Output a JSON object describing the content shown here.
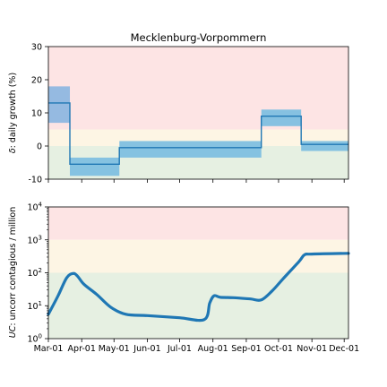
{
  "chart_data": [
    {
      "type": "line",
      "title": "Mecklenburg-Vorpommern",
      "ylabel_symbol": "δ",
      "ylabel_rest": ": daily growth (%)",
      "ylim": [
        -10,
        30
      ],
      "yticks": [
        -10,
        0,
        10,
        20,
        30
      ],
      "xlim": [
        "2020-03-01",
        "2020-12-05"
      ],
      "bands": [
        {
          "from": 5,
          "to": 30,
          "color": "#fde4e4"
        },
        {
          "from": 0,
          "to": 5,
          "color": "#fdf5e4"
        },
        {
          "from": -10,
          "to": 0,
          "color": "#e6f0e2"
        }
      ],
      "series": [
        {
          "type": "step",
          "color": "#1f77b4",
          "segments": [
            {
              "start": "2020-03-01",
              "end": "2020-03-21",
              "value": 13.0,
              "lo": 7.0,
              "hi": 18.0
            },
            {
              "start": "2020-03-21",
              "end": "2020-05-06",
              "value": -5.5,
              "lo": -9.0,
              "hi": -3.5
            },
            {
              "start": "2020-05-06",
              "end": "2020-09-15",
              "value": -0.5,
              "lo": -3.5,
              "hi": 1.5
            },
            {
              "start": "2020-09-15",
              "end": "2020-10-22",
              "value": 9.0,
              "lo": 6.0,
              "hi": 11.0
            },
            {
              "start": "2020-10-22",
              "end": "2020-12-05",
              "value": 0.5,
              "lo": -1.5,
              "hi": 1.5
            }
          ]
        }
      ],
      "grid": false
    },
    {
      "type": "line",
      "yscale": "log",
      "ylabel_symbol": "UC",
      "ylabel_rest": ": uncorr contagious / million",
      "ylim": [
        1,
        10000
      ],
      "xlim": [
        "2020-03-01",
        "2020-12-05"
      ],
      "xticks": [
        "2020-03-01",
        "2020-04-01",
        "2020-05-01",
        "2020-06-01",
        "2020-07-01",
        "2020-08-01",
        "2020-09-01",
        "2020-10-01",
        "2020-11-01",
        "2020-12-01"
      ],
      "xtick_labels": [
        "Mar-01",
        "Apr-01",
        "May-01",
        "Jun-01",
        "Jul-01",
        "Aug-01",
        "Sep-01",
        "Oct-01",
        "Nov-01",
        "Dec-01"
      ],
      "yticks": [
        {
          "value": 1,
          "base": "10",
          "exp": "0"
        },
        {
          "value": 10,
          "base": "10",
          "exp": "1"
        },
        {
          "value": 100,
          "base": "10",
          "exp": "2"
        },
        {
          "value": 1000,
          "base": "10",
          "exp": "3"
        },
        {
          "value": 10000,
          "base": "10",
          "exp": "4"
        }
      ],
      "bands": [
        {
          "from": 1000,
          "to": 10000,
          "color": "#fde4e4"
        },
        {
          "from": 100,
          "to": 1000,
          "color": "#fdf5e4"
        },
        {
          "from": 1,
          "to": 100,
          "color": "#e6f0e2"
        }
      ],
      "series": [
        {
          "color": "#1f77b4",
          "points": [
            [
              "2020-03-01",
              5.5
            ],
            [
              "2020-03-10",
              20
            ],
            [
              "2020-03-18",
              70
            ],
            [
              "2020-03-24",
              95
            ],
            [
              "2020-03-28",
              80
            ],
            [
              "2020-04-03",
              45
            ],
            [
              "2020-04-15",
              22
            ],
            [
              "2020-04-28",
              9
            ],
            [
              "2020-05-12",
              5.5
            ],
            [
              "2020-06-01",
              5.0
            ],
            [
              "2020-07-01",
              4.3
            ],
            [
              "2020-07-24",
              3.8
            ],
            [
              "2020-07-29",
              12
            ],
            [
              "2020-08-02",
              20
            ],
            [
              "2020-08-08",
              18
            ],
            [
              "2020-08-20",
              17.5
            ],
            [
              "2020-09-05",
              16
            ],
            [
              "2020-09-15",
              15
            ],
            [
              "2020-09-25",
              28
            ],
            [
              "2020-10-05",
              65
            ],
            [
              "2020-10-20",
              220
            ],
            [
              "2020-10-25",
              350
            ],
            [
              "2020-11-01",
              370
            ],
            [
              "2020-12-05",
              390
            ]
          ]
        }
      ],
      "grid": false
    }
  ]
}
